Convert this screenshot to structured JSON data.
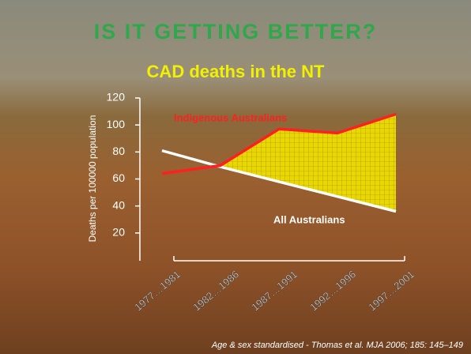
{
  "chart_data": {
    "type": "line",
    "title": "IS IT GETTING BETTER?",
    "subtitle": "CAD deaths in the NT",
    "y_label": "Deaths per 100000 population",
    "categories": [
      "1977…1981",
      "1982…1986",
      "1987…1991",
      "1992…1996",
      "1997…2001"
    ],
    "series": [
      {
        "name": "Indigenous Australians",
        "color": "#ff2020",
        "values": [
          64,
          70,
          97,
          94,
          108
        ]
      },
      {
        "name": "All Australians",
        "color": "#ffffff",
        "values": [
          81,
          69,
          58,
          47,
          36
        ]
      }
    ],
    "ylim": [
      0,
      120
    ],
    "yticks": [
      20,
      40,
      60,
      80,
      100,
      120
    ],
    "fill_between_color": "#e8d800",
    "footnote": "Age & sex standardised - Thomas et al. MJA 2006; 185: 145–149"
  }
}
